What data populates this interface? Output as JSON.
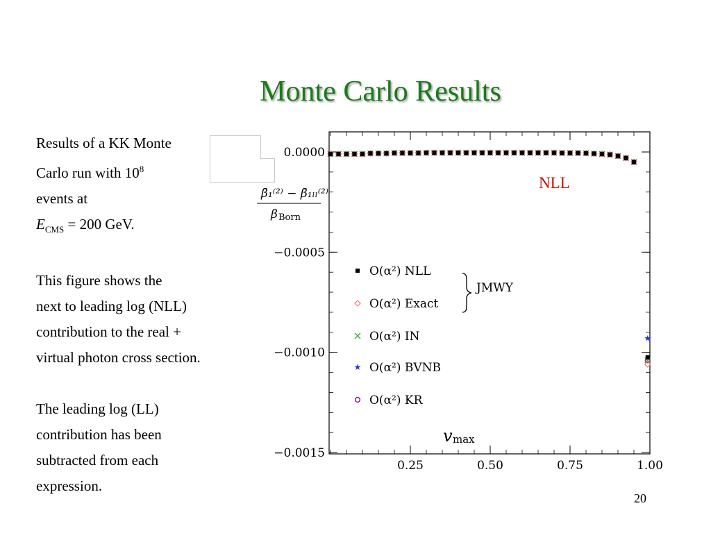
{
  "slide": {
    "title": "Monte Carlo Results",
    "number": "20",
    "label": "NLL"
  },
  "text": {
    "para1_line1": "Results of a KK Monte",
    "para1_line2_a": "Carlo run with 10",
    "para1_line2_sup": "8",
    "para1_line3": "events at",
    "para1_line4_E": "E",
    "para1_line4_sub": "CMS",
    "para1_line4_rest": " = 200 GeV.",
    "para2_line1": "This figure shows the",
    "para2_line2": "next to leading log (NLL)",
    "para2_line3": "contribution to the real +",
    "para2_line4": "virtual photon cross section.",
    "para3_line1": "The leading log (LL)",
    "para3_line2": "contribution has been",
    "para3_line3": "subtracted from each",
    "para3_line4": "expression."
  },
  "chart_data": {
    "type": "scatter",
    "xlabel": "v_max",
    "ylabel": "(β̄1(2) − β̄1LL(2)) / β_Born",
    "xlim": [
      0.0,
      1.0
    ],
    "ylim": [
      -0.0015,
      0.0
    ],
    "xticks": [
      0.25,
      0.5,
      0.75,
      1.0
    ],
    "xtick_labels": [
      "0.25",
      "0.50",
      "0.75",
      "1.00"
    ],
    "yticks": [
      0.0,
      -0.0005,
      -0.001,
      -0.0015
    ],
    "ytick_labels": [
      "0.0000",
      "−0.0005",
      "−0.0010",
      "−0.0015"
    ],
    "legend_group_label": "JMWY",
    "legend_placement": "left-center",
    "x": [
      0.0,
      0.025,
      0.05,
      0.075,
      0.1,
      0.125,
      0.15,
      0.175,
      0.2,
      0.225,
      0.25,
      0.275,
      0.3,
      0.325,
      0.35,
      0.375,
      0.4,
      0.425,
      0.45,
      0.475,
      0.5,
      0.525,
      0.55,
      0.575,
      0.6,
      0.625,
      0.65,
      0.675,
      0.7,
      0.725,
      0.75,
      0.775,
      0.8,
      0.825,
      0.85,
      0.875,
      0.9,
      0.925,
      0.95,
      0.975
    ],
    "series": [
      {
        "name": "O(α²) NLL",
        "marker": "filled-square",
        "color": "#000000",
        "values": [
          -1e-05,
          -1e-05,
          -1e-05,
          -1e-05,
          -1e-05,
          -7e-06,
          -7e-06,
          -7e-06,
          -5e-06,
          -5e-06,
          -5e-06,
          -5e-06,
          -4e-06,
          -4e-06,
          -4e-06,
          -4e-06,
          -4e-06,
          -4e-06,
          -4e-06,
          -4e-06,
          -4e-06,
          -4e-06,
          -4e-06,
          -4e-06,
          -4e-06,
          -4e-06,
          -4e-06,
          -4e-06,
          -4e-06,
          -5e-06,
          -5e-06,
          -5e-06,
          -6e-06,
          -8e-06,
          -1e-05,
          -1.3e-05,
          -2e-05,
          -3e-05,
          -5e-05,
          -0.001025
        ]
      },
      {
        "name": "O(α²) Exact",
        "marker": "open-diamond",
        "color": "#ff7777",
        "values": [
          -1e-05,
          -1e-05,
          -1e-05,
          -1e-05,
          -1e-05,
          -7e-06,
          -7e-06,
          -7e-06,
          -5e-06,
          -5e-06,
          -5e-06,
          -5e-06,
          -4e-06,
          -4e-06,
          -4e-06,
          -4e-06,
          -4e-06,
          -4e-06,
          -4e-06,
          -4e-06,
          -4e-06,
          -4e-06,
          -4e-06,
          -4e-06,
          -4e-06,
          -4e-06,
          -4e-06,
          -4e-06,
          -4e-06,
          -5e-06,
          -5e-06,
          -5e-06,
          -6e-06,
          -8e-06,
          -1e-05,
          -1.3e-05,
          -2e-05,
          -3e-05,
          -5e-05,
          -0.00106
        ]
      },
      {
        "name": "O(α²) IN",
        "marker": "cross",
        "color": "#33aa33",
        "values": [
          -1e-05,
          -1e-05,
          -1e-05,
          -1e-05,
          -1e-05,
          -7e-06,
          -7e-06,
          -7e-06,
          -5e-06,
          -5e-06,
          -5e-06,
          -5e-06,
          -4e-06,
          -4e-06,
          -4e-06,
          -4e-06,
          -4e-06,
          -4e-06,
          -4e-06,
          -4e-06,
          -4e-06,
          -4e-06,
          -4e-06,
          -4e-06,
          -4e-06,
          -4e-06,
          -4e-06,
          -4e-06,
          -4e-06,
          -5e-06,
          -5e-06,
          -5e-06,
          -6e-06,
          -8e-06,
          -1e-05,
          -1.3e-05,
          -2e-05,
          -3e-05,
          -5e-05,
          -0.00104
        ]
      },
      {
        "name": "O(α²) BVNB",
        "marker": "star",
        "color": "#2233dd",
        "values": [
          -1e-05,
          -1e-05,
          -1e-05,
          -1e-05,
          -1e-05,
          -7e-06,
          -7e-06,
          -7e-06,
          -5e-06,
          -5e-06,
          -5e-06,
          -5e-06,
          -4e-06,
          -4e-06,
          -4e-06,
          -4e-06,
          -4e-06,
          -4e-06,
          -4e-06,
          -4e-06,
          -4e-06,
          -4e-06,
          -4e-06,
          -4e-06,
          -4e-06,
          -4e-06,
          -4e-06,
          -4e-06,
          -4e-06,
          -5e-06,
          -5e-06,
          -5e-06,
          -6e-06,
          -8e-06,
          -1e-05,
          -1.3e-05,
          -2e-05,
          -3e-05,
          -5e-05,
          -0.00093
        ]
      },
      {
        "name": "O(α²) KR",
        "marker": "open-circle",
        "color": "#881188",
        "values": [
          -1e-05,
          -1e-05,
          -1e-05,
          -1e-05,
          -1e-05,
          -7e-06,
          -7e-06,
          -7e-06,
          -5e-06,
          -5e-06,
          -5e-06,
          -5e-06,
          -4e-06,
          -4e-06,
          -4e-06,
          -4e-06,
          -4e-06,
          -4e-06,
          -4e-06,
          -4e-06,
          -4e-06,
          -4e-06,
          -4e-06,
          -4e-06,
          -4e-06,
          -4e-06,
          -4e-06,
          -4e-06,
          -4e-06,
          -5e-06,
          -5e-06,
          -5e-06,
          -6e-06,
          -8e-06,
          -1e-05,
          -1.3e-05,
          -2e-05,
          -3e-05,
          -5e-05,
          -0.00104
        ]
      }
    ]
  }
}
